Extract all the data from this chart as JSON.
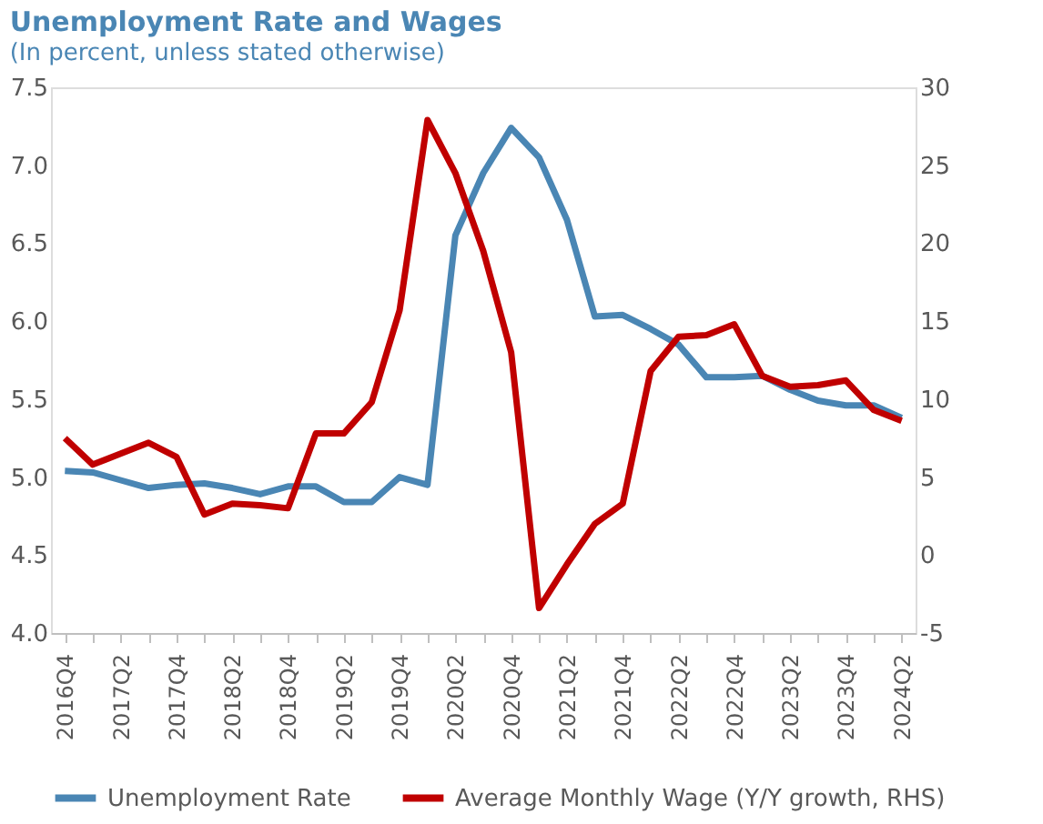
{
  "chart_data": {
    "type": "line",
    "title": "Unemployment Rate and Wages",
    "subtitle": "(In percent, unless stated otherwise)",
    "categories": [
      "2016Q4",
      null,
      "2017Q2",
      null,
      "2017Q4",
      null,
      "2018Q2",
      null,
      "2018Q4",
      null,
      "2019Q2",
      null,
      "2019Q4",
      null,
      "2020Q2",
      null,
      "2020Q4",
      null,
      "2021Q2",
      null,
      "2021Q4",
      null,
      "2022Q2",
      null,
      "2022Q4",
      null,
      "2023Q2",
      null,
      "2023Q4",
      null,
      "2024Q2"
    ],
    "series": [
      {
        "name": "Unemployment Rate",
        "color": "#4a86b4",
        "values": [
          5.04,
          5.03,
          4.98,
          4.93,
          4.95,
          4.96,
          4.93,
          4.89,
          4.94,
          4.94,
          4.84,
          4.84,
          5.0,
          4.95,
          6.55,
          6.95,
          7.24,
          7.05,
          6.65,
          6.03,
          6.04,
          5.95,
          5.85,
          5.64,
          5.64,
          5.65,
          5.56,
          5.49,
          5.46,
          5.46,
          5.38
        ]
      },
      {
        "name": "Average Monthly Wage (Y/Y growth, RHS)",
        "color": "#c00000",
        "axis": "y2",
        "values": [
          7.5,
          5.8,
          6.5,
          7.2,
          6.3,
          2.6,
          3.3,
          3.2,
          3.0,
          7.8,
          7.8,
          9.8,
          15.7,
          27.9,
          24.5,
          19.5,
          13.0,
          -3.4,
          -0.6,
          2.0,
          3.3,
          11.8,
          14.0,
          14.1,
          14.8,
          11.5,
          10.8,
          10.9,
          11.2,
          9.3,
          8.6
        ]
      }
    ],
    "ylim": [
      4.0,
      7.5
    ],
    "yticks": [
      {
        "value": 4,
        "label": "4.0"
      },
      4.5,
      {
        "value": 5,
        "label": "5.0"
      },
      5.5,
      {
        "value": 6,
        "label": "6.0"
      },
      6.5,
      {
        "value": 7,
        "label": "7.0"
      },
      7.5
    ],
    "y2lim": [
      -5,
      30
    ],
    "y2ticks": [
      -5,
      0,
      5,
      10,
      15,
      20,
      25,
      30
    ],
    "grid": false,
    "legend": "bottom",
    "marker": "none",
    "line_style": "solid"
  }
}
